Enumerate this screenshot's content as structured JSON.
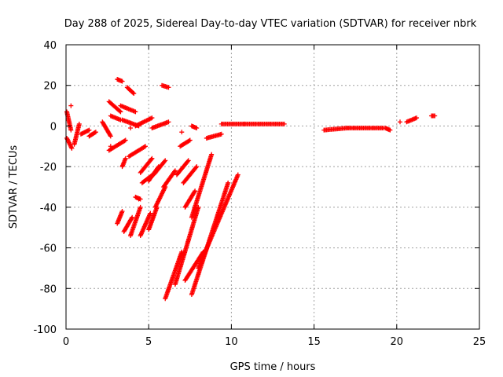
{
  "chart_data": {
    "type": "scatter",
    "title": "Day 288 of 2025, Sidereal Day-to-day VTEC variation (SDTVAR) for receiver nbrk",
    "xlabel": "GPS time / hours",
    "ylabel": "SDTVAR / TECUs",
    "xlim": [
      0,
      25
    ],
    "ylim": [
      -100,
      40
    ],
    "xticks": [
      0,
      5,
      10,
      15,
      20,
      25
    ],
    "yticks": [
      -100,
      -80,
      -60,
      -40,
      -20,
      0,
      20,
      40
    ],
    "grid": true,
    "marker": "+",
    "color": "#ff0000",
    "segments": [
      {
        "x": [
          0.05,
          0.3
        ],
        "y": [
          7,
          -2
        ]
      },
      {
        "x": [
          0.05,
          0.35
        ],
        "y": [
          -6,
          -11
        ]
      },
      {
        "x": [
          0.5,
          0.8
        ],
        "y": [
          -9,
          1
        ]
      },
      {
        "x": [
          0.9,
          1.4
        ],
        "y": [
          -4,
          -2
        ]
      },
      {
        "x": [
          1.4,
          1.8
        ],
        "y": [
          -5,
          -3
        ]
      },
      {
        "x": [
          2.2,
          2.7
        ],
        "y": [
          2,
          -5
        ]
      },
      {
        "x": [
          2.6,
          3.3
        ],
        "y": [
          12,
          7
        ]
      },
      {
        "x": [
          2.7,
          3.3
        ],
        "y": [
          5,
          3
        ]
      },
      {
        "x": [
          2.6,
          3.6
        ],
        "y": [
          -12,
          -7
        ]
      },
      {
        "x": [
          3.1,
          3.4
        ],
        "y": [
          23,
          22
        ]
      },
      {
        "x": [
          3.7,
          4.1
        ],
        "y": [
          19,
          16
        ]
      },
      {
        "x": [
          3.3,
          4.2
        ],
        "y": [
          10,
          7
        ]
      },
      {
        "x": [
          3.4,
          4.4
        ],
        "y": [
          3,
          0
        ]
      },
      {
        "x": [
          3.4,
          3.6
        ],
        "y": [
          -20,
          -16
        ]
      },
      {
        "x": [
          3.8,
          4.8
        ],
        "y": [
          -15,
          -10
        ]
      },
      {
        "x": [
          4.2,
          5.2
        ],
        "y": [
          0,
          4
        ]
      },
      {
        "x": [
          4.5,
          5.2
        ],
        "y": [
          -23,
          -16
        ]
      },
      {
        "x": [
          4.6,
          5.4
        ],
        "y": [
          -28,
          -23
        ]
      },
      {
        "x": [
          5.0,
          5.6
        ],
        "y": [
          -27,
          -20
        ]
      },
      {
        "x": [
          5.3,
          6.0
        ],
        "y": [
          -24,
          -17
        ]
      },
      {
        "x": [
          4.2,
          4.5
        ],
        "y": [
          -35,
          -36
        ]
      },
      {
        "x": [
          3.1,
          3.4
        ],
        "y": [
          -48,
          -42
        ]
      },
      {
        "x": [
          3.5,
          4.0
        ],
        "y": [
          -52,
          -45
        ]
      },
      {
        "x": [
          3.9,
          4.5
        ],
        "y": [
          -54,
          -40
        ]
      },
      {
        "x": [
          4.5,
          5.1
        ],
        "y": [
          -54,
          -43
        ]
      },
      {
        "x": [
          5.0,
          5.5
        ],
        "y": [
          -51,
          -40
        ]
      },
      {
        "x": [
          5.4,
          6.0
        ],
        "y": [
          -40,
          -30
        ]
      },
      {
        "x": [
          5.9,
          6.6
        ],
        "y": [
          -30,
          -22
        ]
      },
      {
        "x": [
          5.2,
          6.2
        ],
        "y": [
          -1,
          2
        ]
      },
      {
        "x": [
          5.8,
          6.2
        ],
        "y": [
          20,
          19
        ]
      },
      {
        "x": [
          6.0,
          7.0
        ],
        "y": [
          -85,
          -62
        ]
      },
      {
        "x": [
          6.6,
          8.0
        ],
        "y": [
          -78,
          -40
        ]
      },
      {
        "x": [
          7.2,
          8.3
        ],
        "y": [
          -76,
          -62
        ]
      },
      {
        "x": [
          7.6,
          9.8
        ],
        "y": [
          -83,
          -28
        ]
      },
      {
        "x": [
          8.0,
          10.4
        ],
        "y": [
          -70,
          -24
        ]
      },
      {
        "x": [
          7.6,
          8.8
        ],
        "y": [
          -45,
          -14
        ]
      },
      {
        "x": [
          6.7,
          7.4
        ],
        "y": [
          -24,
          -17
        ]
      },
      {
        "x": [
          7.1,
          7.9
        ],
        "y": [
          -28,
          -20
        ]
      },
      {
        "x": [
          7.2,
          7.8
        ],
        "y": [
          -40,
          -32
        ]
      },
      {
        "x": [
          6.9,
          7.5
        ],
        "y": [
          -10,
          -7
        ]
      },
      {
        "x": [
          7.6,
          7.9
        ],
        "y": [
          0,
          -1
        ]
      },
      {
        "x": [
          8.5,
          9.4
        ],
        "y": [
          -6,
          -4
        ]
      },
      {
        "x": [
          9.4,
          10.8
        ],
        "y": [
          1,
          1
        ]
      },
      {
        "x": [
          10.8,
          13.2
        ],
        "y": [
          1,
          1
        ]
      },
      {
        "x": [
          15.6,
          17.0
        ],
        "y": [
          -2,
          -1
        ]
      },
      {
        "x": [
          17.0,
          19.2
        ],
        "y": [
          -1,
          -1
        ]
      },
      {
        "x": [
          19.3,
          19.6
        ],
        "y": [
          -1,
          -2
        ]
      },
      {
        "x": [
          20.6,
          21.2
        ],
        "y": [
          2,
          4
        ]
      },
      {
        "x": [
          22.1,
          22.3
        ],
        "y": [
          5,
          5
        ]
      }
    ],
    "points": [
      {
        "x": 0.3,
        "y": 10
      },
      {
        "x": 20.2,
        "y": 2
      },
      {
        "x": 7.0,
        "y": -3
      },
      {
        "x": 3.9,
        "y": -1
      },
      {
        "x": 4.4,
        "y": -36
      },
      {
        "x": 2.7,
        "y": -10
      }
    ]
  }
}
